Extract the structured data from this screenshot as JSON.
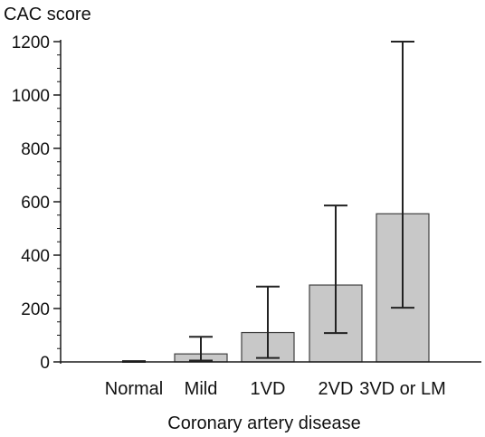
{
  "chart_data": {
    "type": "bar",
    "title": "",
    "ylabel": "CAC score",
    "xlabel": "Coronary artery disease",
    "categories": [
      "Normal",
      "Mild",
      "1VD",
      "2VD",
      "3VD or LM"
    ],
    "values": [
      0,
      30,
      110,
      288,
      555
    ],
    "error_low": [
      0,
      5,
      15,
      108,
      203
    ],
    "error_high": [
      3,
      94,
      282,
      586,
      1200
    ],
    "ylim": [
      0,
      1200
    ],
    "yticks": [
      0,
      200,
      400,
      600,
      800,
      1000,
      1200
    ],
    "grid": false,
    "colors": {
      "bar_fill": "#c8c8c8",
      "bar_stroke": "#404040",
      "axis": "#1a1a1a",
      "error": "#222222"
    }
  }
}
